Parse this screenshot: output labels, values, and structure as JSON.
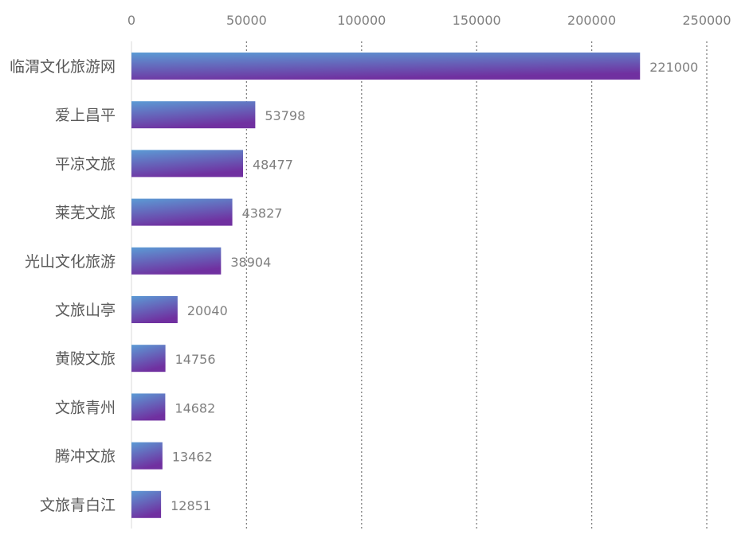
{
  "chart_data": {
    "type": "bar",
    "orientation": "horizontal",
    "categories": [
      "临渭文化旅游网",
      "爱上昌平",
      "平凉文旅",
      "莱芜文旅",
      "光山文化旅游",
      "文旅山亭",
      "黄陂文旅",
      "文旅青州",
      "腾冲文旅",
      "文旅青白江"
    ],
    "values": [
      221000,
      53798,
      48477,
      43827,
      38904,
      20040,
      14756,
      14682,
      13462,
      12851
    ],
    "data_labels": [
      "221000",
      "53798",
      "48477",
      "43827",
      "38904",
      "20040",
      "14756",
      "14682",
      "13462",
      "12851"
    ],
    "xlim": [
      0,
      250000
    ],
    "x_ticks": [
      0,
      50000,
      100000,
      150000,
      200000,
      250000
    ],
    "x_tick_labels": [
      "0",
      "50000",
      "100000",
      "150000",
      "200000",
      "250000"
    ],
    "x_axis_position": "top",
    "grid": "vertical dotted",
    "bar_gradient": [
      "#5b9bd5",
      "#7030a0"
    ],
    "label_color": "#7f7f7f",
    "category_label_color": "#595959",
    "grid_color": "#7f7f7f"
  }
}
